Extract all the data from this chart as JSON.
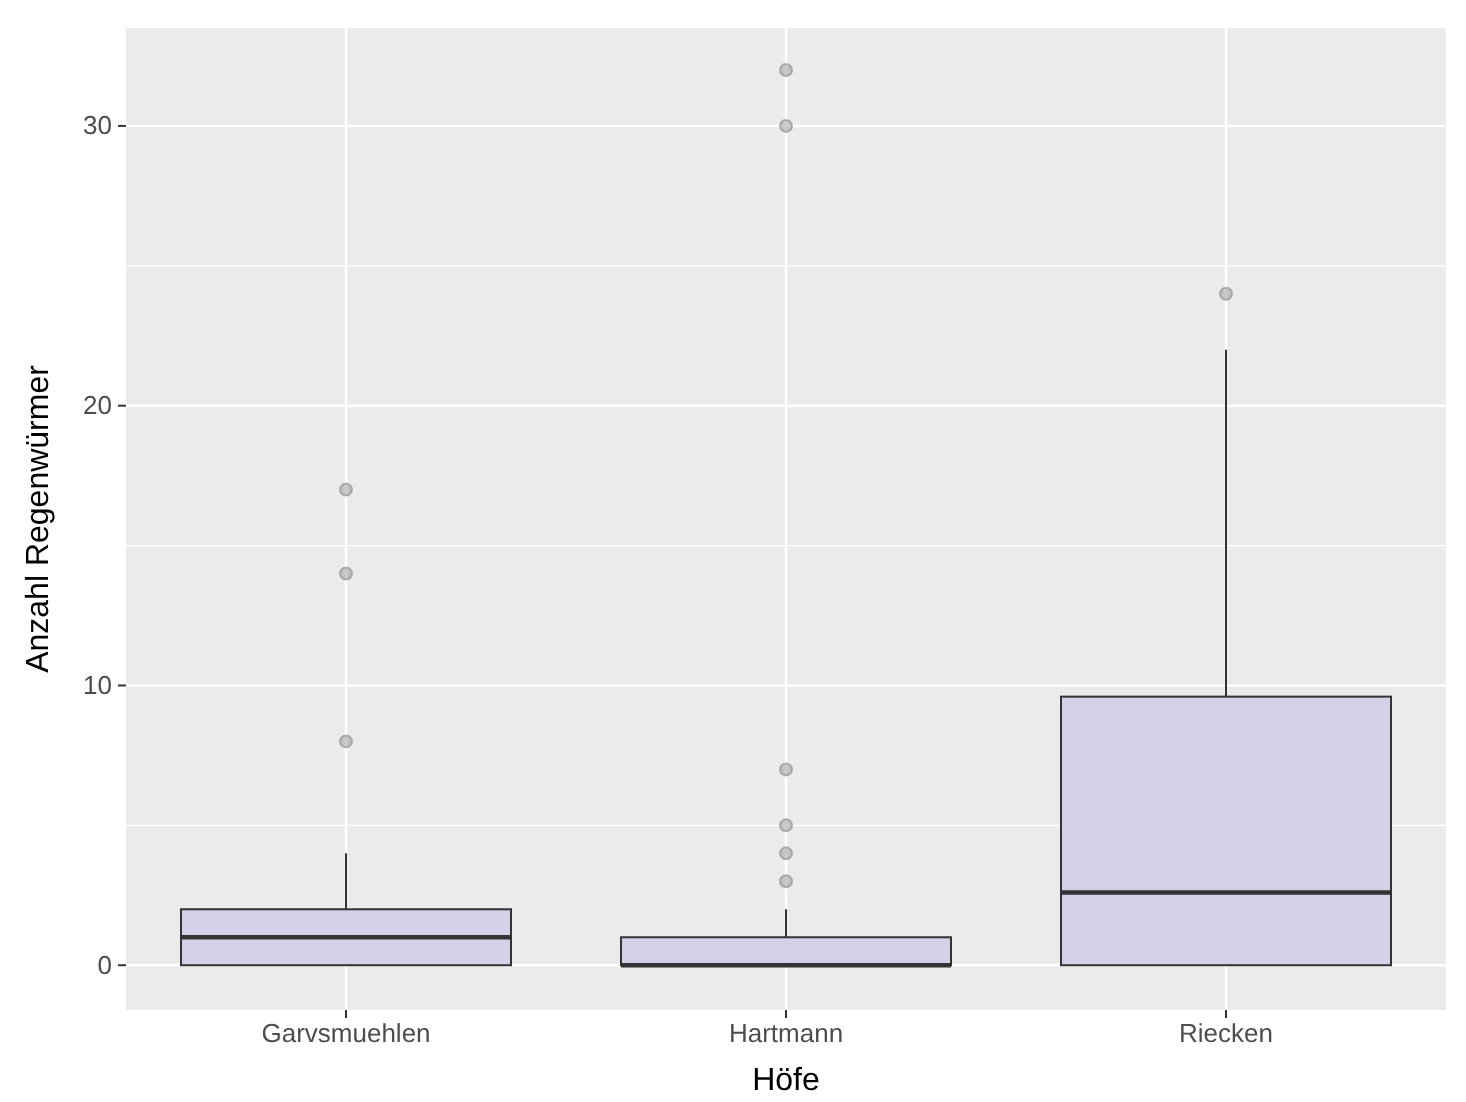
{
  "chart_data": {
    "type": "box",
    "xlabel": "Höfe",
    "ylabel": "Anzahl Regenwürmer",
    "categories": [
      "Garvsmuehlen",
      "Hartmann",
      "Riecken"
    ],
    "ylim": [
      -1.6,
      33.5
    ],
    "yticks": [
      0,
      10,
      20,
      30
    ],
    "grid": true,
    "color": "#d4d0e8",
    "boxes": [
      {
        "low": 0,
        "q1": 0,
        "median": 1,
        "q3": 2,
        "high": 4,
        "outliers": [
          8,
          14,
          17
        ]
      },
      {
        "low": 0,
        "q1": 0,
        "median": 0,
        "q3": 1,
        "high": 2,
        "outliers": [
          3,
          4,
          5,
          7,
          30,
          32
        ]
      },
      {
        "low": 0,
        "q1": 0,
        "median": 2.6,
        "q3": 9.6,
        "high": 22,
        "outliers": [
          24
        ]
      }
    ]
  }
}
